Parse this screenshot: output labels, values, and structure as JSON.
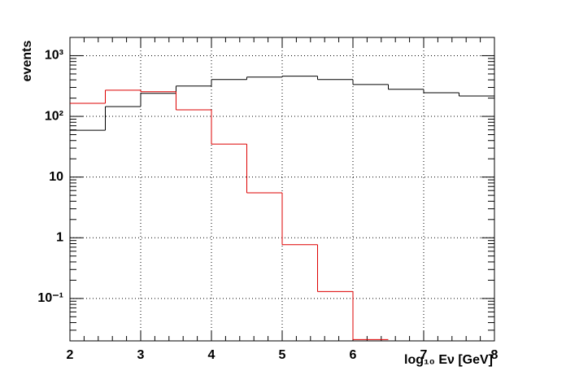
{
  "chart_data": {
    "type": "histogram",
    "xlabel": "log₁₀ Eν [GeV]",
    "ylabel": "events",
    "bins": [
      2,
      2.5,
      3,
      3.5,
      4,
      4.5,
      5,
      5.5,
      6,
      6.5,
      7,
      7.5,
      8
    ],
    "series": [
      {
        "color": "#000000",
        "values": [
          59,
          145,
          240,
          316,
          405,
          445,
          460,
          405,
          335,
          280,
          245,
          217
        ]
      },
      {
        "color": "#dd0000",
        "values": [
          164,
          270,
          255,
          128,
          35,
          5.5,
          0.77,
          0.13,
          0.021,
          null,
          null,
          null
        ]
      }
    ],
    "xlim": [
      2,
      8
    ],
    "xticks": [
      2,
      3,
      4,
      5,
      6,
      7,
      8
    ],
    "ylim": [
      0.02,
      2000
    ],
    "log_y": true,
    "yticks": [
      {
        "value": 0.1,
        "label": "10⁻¹"
      },
      1,
      10,
      {
        "value": 100,
        "label": "10²"
      },
      {
        "value": 1000,
        "label": "10³"
      }
    ],
    "grid": true
  }
}
